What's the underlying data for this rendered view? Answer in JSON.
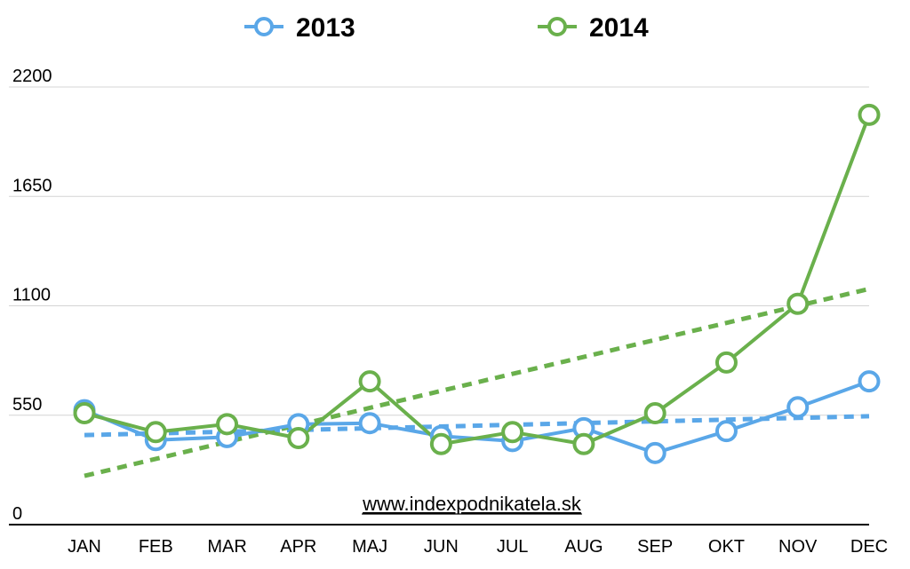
{
  "chart_data": {
    "type": "line",
    "categories": [
      "JAN",
      "FEB",
      "MAR",
      "APR",
      "MAJ",
      "JUN",
      "JUL",
      "AUG",
      "SEP",
      "OKT",
      "NOV",
      "DEC"
    ],
    "series": [
      {
        "name": "2013",
        "color": "#5aa7e8",
        "values": [
          575,
          425,
          440,
          505,
          510,
          445,
          420,
          485,
          360,
          470,
          590,
          720
        ],
        "trendline": [
          450,
          545
        ]
      },
      {
        "name": "2014",
        "color": "#6ab04c",
        "values": [
          560,
          465,
          505,
          435,
          720,
          405,
          465,
          405,
          560,
          815,
          1110,
          2060
        ],
        "trendline": [
          245,
          1185
        ]
      }
    ],
    "y_ticks": [
      0,
      550,
      1100,
      1650,
      2200
    ],
    "ylim": [
      0,
      2200
    ],
    "grid": true,
    "legend_position": "top-center",
    "annotation": "www.indexpodnikatela.sk"
  }
}
